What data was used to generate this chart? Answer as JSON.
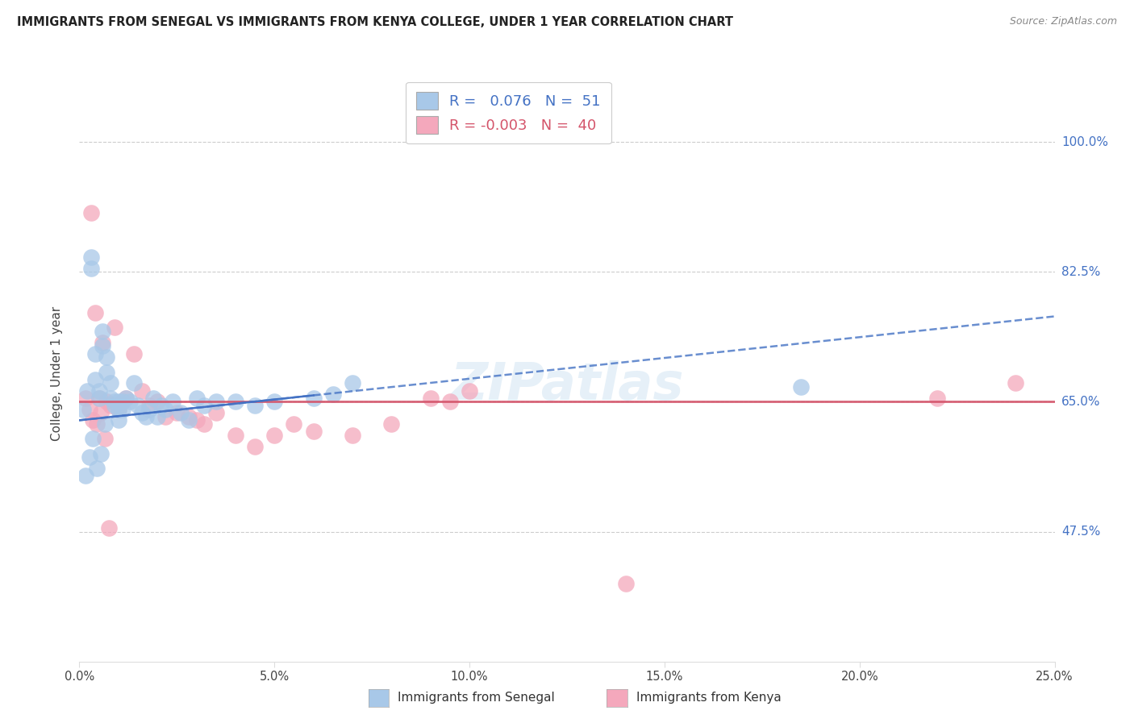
{
  "title": "IMMIGRANTS FROM SENEGAL VS IMMIGRANTS FROM KENYA COLLEGE, UNDER 1 YEAR CORRELATION CHART",
  "source": "Source: ZipAtlas.com",
  "ylabel": "College, Under 1 year",
  "xlim": [
    0.0,
    25.0
  ],
  "ylim": [
    30.0,
    107.5
  ],
  "yticks": [
    47.5,
    65.0,
    82.5,
    100.0
  ],
  "xticks": [
    0.0,
    5.0,
    10.0,
    15.0,
    20.0,
    25.0
  ],
  "xtick_labels": [
    "0.0%",
    "5.0%",
    "10.0%",
    "15.0%",
    "20.0%",
    "25.0%"
  ],
  "ytick_labels": [
    "47.5%",
    "65.0%",
    "82.5%",
    "100.0%"
  ],
  "senegal_R": 0.076,
  "senegal_N": 51,
  "kenya_R": -0.003,
  "kenya_N": 40,
  "senegal_color": "#a8c8e8",
  "kenya_color": "#f4a8bc",
  "senegal_line_color": "#4472c4",
  "kenya_line_color": "#d4546a",
  "watermark": "ZIPatlas",
  "senegal_x": [
    0.1,
    0.2,
    0.3,
    0.3,
    0.4,
    0.4,
    0.5,
    0.5,
    0.6,
    0.6,
    0.7,
    0.7,
    0.8,
    0.8,
    0.9,
    0.9,
    1.0,
    1.0,
    1.0,
    1.1,
    1.1,
    1.2,
    1.3,
    1.4,
    1.5,
    1.6,
    1.7,
    1.8,
    1.9,
    2.0,
    2.1,
    2.2,
    2.4,
    2.6,
    2.8,
    3.0,
    3.2,
    3.5,
    4.0,
    4.5,
    5.0,
    6.0,
    6.5,
    7.0,
    0.15,
    0.25,
    0.35,
    0.45,
    0.55,
    0.65,
    18.5
  ],
  "senegal_y": [
    64.0,
    66.5,
    84.5,
    83.0,
    71.5,
    68.0,
    66.5,
    65.5,
    74.5,
    72.5,
    71.0,
    69.0,
    67.5,
    65.5,
    64.5,
    65.0,
    65.0,
    64.0,
    62.5,
    64.0,
    65.0,
    65.5,
    65.0,
    67.5,
    64.5,
    63.5,
    63.0,
    64.0,
    65.5,
    63.0,
    64.5,
    64.0,
    65.0,
    63.5,
    62.5,
    65.5,
    64.5,
    65.0,
    65.0,
    64.5,
    65.0,
    65.5,
    66.0,
    67.5,
    55.0,
    57.5,
    60.0,
    56.0,
    58.0,
    62.0,
    67.0
  ],
  "kenya_x": [
    0.15,
    0.3,
    0.4,
    0.5,
    0.6,
    0.7,
    0.8,
    0.9,
    1.0,
    1.1,
    1.2,
    1.4,
    1.6,
    1.8,
    2.0,
    2.2,
    2.5,
    2.8,
    3.0,
    3.2,
    3.5,
    4.0,
    4.5,
    5.0,
    5.5,
    6.0,
    7.0,
    8.0,
    9.0,
    9.5,
    10.0,
    14.0,
    22.0,
    24.0,
    0.25,
    0.35,
    0.45,
    0.55,
    0.65,
    0.75
  ],
  "kenya_y": [
    65.5,
    90.5,
    77.0,
    65.5,
    73.0,
    65.0,
    64.5,
    75.0,
    64.0,
    65.0,
    65.5,
    71.5,
    66.5,
    64.5,
    65.0,
    63.0,
    63.5,
    63.0,
    62.5,
    62.0,
    63.5,
    60.5,
    59.0,
    60.5,
    62.0,
    61.0,
    60.5,
    62.0,
    65.5,
    65.0,
    66.5,
    40.5,
    65.5,
    67.5,
    64.0,
    62.5,
    62.0,
    63.5,
    60.0,
    48.0
  ],
  "senegal_trend_x": [
    0.0,
    25.0
  ],
  "senegal_trend_y": [
    62.5,
    76.5
  ],
  "kenya_trend_y": [
    65.0,
    65.0
  ]
}
